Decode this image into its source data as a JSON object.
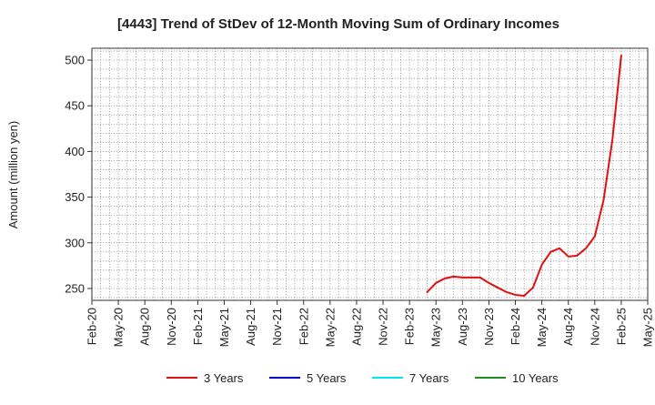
{
  "chart_data": {
    "type": "line",
    "title": "[4443]  Trend of StDev of 12-Month Moving Sum of Ordinary Incomes",
    "ylabel": "Amount (million yen)",
    "xlabel": "",
    "x_ticks": [
      "Feb-20",
      "May-20",
      "Aug-20",
      "Nov-20",
      "Feb-21",
      "May-21",
      "Aug-21",
      "Nov-21",
      "Feb-22",
      "May-22",
      "Aug-22",
      "Nov-22",
      "Feb-23",
      "May-23",
      "Aug-23",
      "Nov-23",
      "Feb-24",
      "May-24",
      "Aug-24",
      "Nov-24",
      "Feb-25",
      "May-25"
    ],
    "y_ticks": [
      250,
      300,
      350,
      400,
      450,
      500
    ],
    "ylim": [
      237,
      513
    ],
    "grid": true,
    "legend_position": "bottom",
    "series": [
      {
        "name": "3 Years",
        "color": "#dd1111",
        "x": [
          "Apr-23",
          "May-23",
          "Jun-23",
          "Jul-23",
          "Aug-23",
          "Sep-23",
          "Oct-23",
          "Nov-23",
          "Dec-23",
          "Jan-24",
          "Feb-24",
          "Mar-24",
          "Apr-24",
          "May-24",
          "Jun-24",
          "Jul-24",
          "Aug-24",
          "Sep-24",
          "Oct-24",
          "Nov-24",
          "Dec-24",
          "Jan-25",
          "Feb-25"
        ],
        "values": [
          246,
          256,
          261,
          263,
          262,
          262,
          262,
          256,
          251,
          246,
          243,
          242,
          251,
          276,
          290,
          294,
          285,
          286,
          294,
          307,
          347,
          413,
          505
        ]
      },
      {
        "name": "5 Years",
        "color": "#0000cc",
        "x": [],
        "values": []
      },
      {
        "name": "7 Years",
        "color": "#00e5ee",
        "x": [],
        "values": []
      },
      {
        "name": "10 Years",
        "color": "#228b22",
        "x": [],
        "values": []
      }
    ]
  }
}
